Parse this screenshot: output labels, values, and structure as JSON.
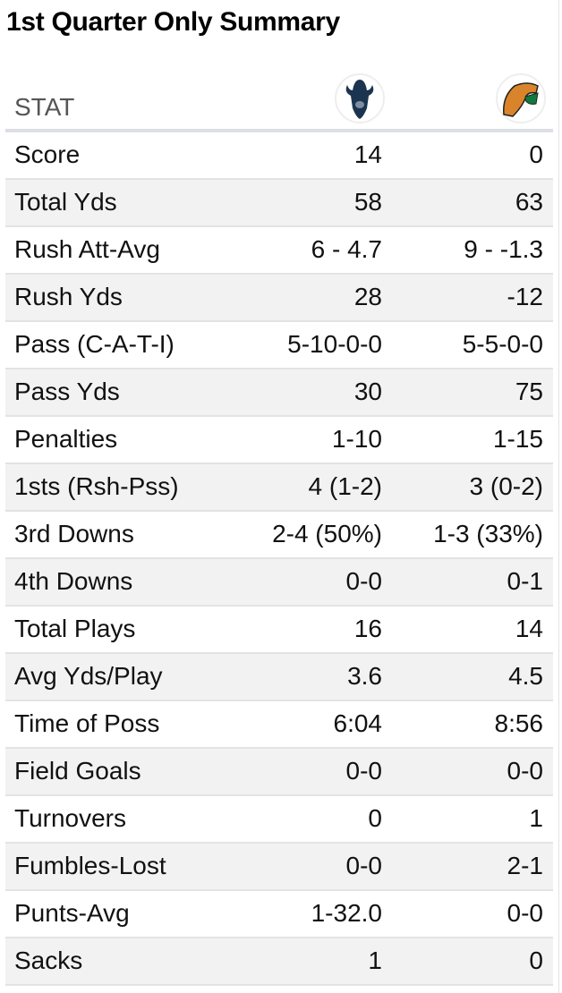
{
  "title": "1st Quarter Only Summary",
  "header": {
    "stat_label": "STAT",
    "team1_logo": "bison-logo",
    "team2_logo": "rattler-logo"
  },
  "colors": {
    "team1": "#1b3550",
    "team2_orange": "#d9842a",
    "team2_green": "#0f7a3e",
    "alt_row": "#f2f2f2"
  },
  "rows": [
    {
      "label": "Score",
      "team1": "14",
      "team2": "0"
    },
    {
      "label": "Total Yds",
      "team1": "58",
      "team2": "63"
    },
    {
      "label": "Rush Att-Avg",
      "team1": "6 - 4.7",
      "team2": "9 - -1.3"
    },
    {
      "label": "Rush Yds",
      "team1": "28",
      "team2": "-12"
    },
    {
      "label": "Pass (C-A-T-I)",
      "team1": "5-10-0-0",
      "team2": "5-5-0-0"
    },
    {
      "label": "Pass Yds",
      "team1": "30",
      "team2": "75"
    },
    {
      "label": "Penalties",
      "team1": "1-10",
      "team2": "1-15"
    },
    {
      "label": "1sts (Rsh-Pss)",
      "team1": "4 (1-2)",
      "team2": "3 (0-2)"
    },
    {
      "label": "3rd Downs",
      "team1": "2-4 (50%)",
      "team2": "1-3 (33%)"
    },
    {
      "label": "4th Downs",
      "team1": "0-0",
      "team2": "0-1"
    },
    {
      "label": "Total Plays",
      "team1": "16",
      "team2": "14"
    },
    {
      "label": "Avg Yds/Play",
      "team1": "3.6",
      "team2": "4.5"
    },
    {
      "label": "Time of Poss",
      "team1": "6:04",
      "team2": "8:56"
    },
    {
      "label": "Field Goals",
      "team1": "0-0",
      "team2": "0-0"
    },
    {
      "label": "Turnovers",
      "team1": "0",
      "team2": "1"
    },
    {
      "label": "Fumbles-Lost",
      "team1": "0-0",
      "team2": "2-1"
    },
    {
      "label": "Punts-Avg",
      "team1": "1-32.0",
      "team2": "0-0"
    },
    {
      "label": "Sacks",
      "team1": "1",
      "team2": "0"
    }
  ]
}
